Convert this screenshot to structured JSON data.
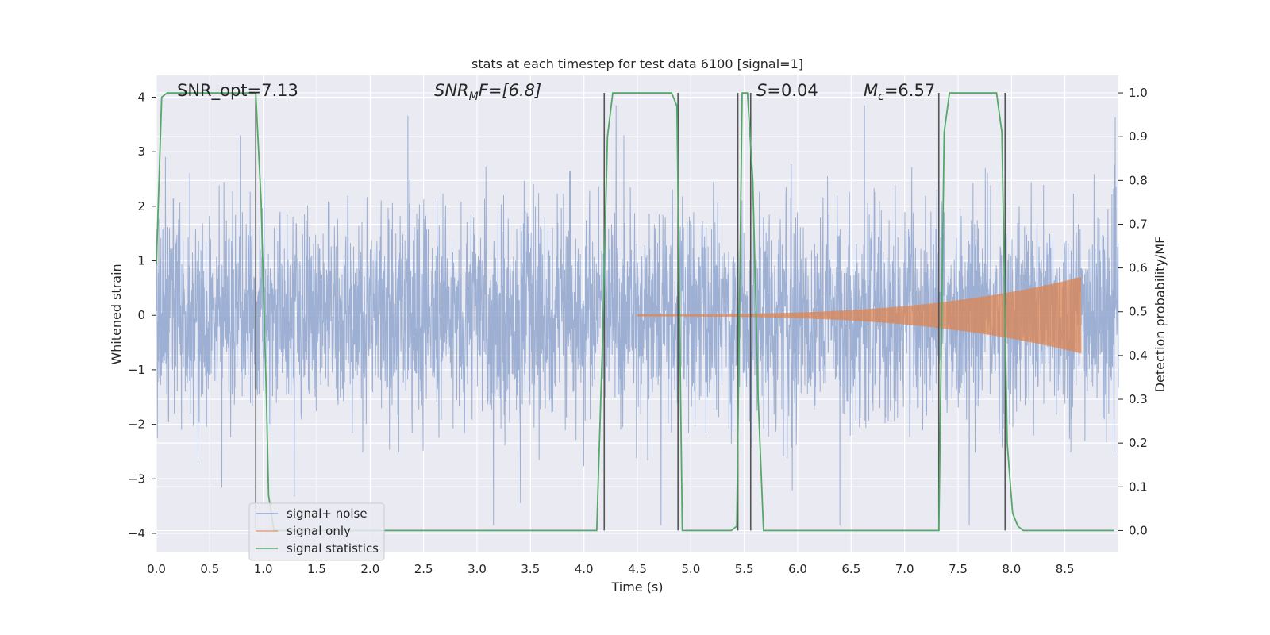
{
  "chart_data": {
    "type": "line",
    "title": "stats at each timestep for test data 6100 [signal=1]",
    "xlabel": "Time (s)",
    "ylabel": "Whitened strain",
    "y2label": "Detection probability/MF",
    "xlim": [
      0.0,
      9.0
    ],
    "ylim": [
      -4.35,
      4.4
    ],
    "y2lim": [
      -0.05,
      1.04
    ],
    "xticks": [
      "0.0",
      "0.5",
      "1.0",
      "1.5",
      "2.0",
      "2.5",
      "3.0",
      "3.5",
      "4.0",
      "4.5",
      "5.0",
      "5.5",
      "6.0",
      "6.5",
      "7.0",
      "7.5",
      "8.0",
      "8.5"
    ],
    "yticks": [
      "4",
      "3",
      "2",
      "1",
      "0",
      "−1",
      "−2",
      "−3",
      "−4"
    ],
    "y2ticks": [
      "1.0",
      "0.9",
      "0.8",
      "0.7",
      "0.6",
      "0.5",
      "0.4",
      "0.3",
      "0.2",
      "0.1",
      "0.0"
    ],
    "grid": true,
    "legend_position": "lower-left",
    "annotations": {
      "snr_opt": "SNR_opt=7.13",
      "snr_mf_main": "SNR",
      "snr_mf_sub": "M",
      "snr_mf_rest": "F=[6.8]",
      "s_main": "S",
      "s_rest": "=0.04",
      "mc_main": "M",
      "mc_sub": "c",
      "mc_rest": "=6.57"
    },
    "series": [
      {
        "name": "signal+ noise",
        "color": "#8fa6cf",
        "description": "noisy whitened strain, roughly Gaussian, amplitude mostly within ±2.5 with spikes to ±3.8"
      },
      {
        "name": "signal only",
        "color": "#dd8452",
        "chirp": {
          "start": 4.5,
          "end": 8.65,
          "amp_start": 0.02,
          "amp_end": 0.7
        }
      },
      {
        "name": "signal statistics",
        "color": "#55a868",
        "axis": "right",
        "x": [
          0.0,
          0.05,
          0.1,
          0.15,
          0.93,
          0.98,
          1.03,
          1.05,
          1.1,
          4.12,
          4.17,
          4.22,
          4.27,
          4.82,
          4.87,
          4.92,
          4.97,
          5.38,
          5.43,
          5.48,
          5.53,
          5.58,
          5.63,
          5.68,
          7.32,
          7.37,
          7.42,
          7.86,
          7.91,
          7.96,
          8.01,
          8.06,
          8.11,
          8.16,
          8.21,
          8.26,
          8.96
        ],
        "y": [
          0.61,
          0.99,
          1.0,
          1.0,
          1.0,
          0.75,
          0.3,
          0.08,
          0.0,
          0.0,
          0.4,
          0.9,
          1.0,
          1.0,
          0.97,
          0.0,
          0.0,
          0.0,
          0.01,
          1.0,
          1.0,
          0.8,
          0.3,
          0.0,
          0.0,
          0.91,
          1.0,
          1.0,
          0.91,
          0.2,
          0.04,
          0.01,
          0.0,
          0.0,
          0.0,
          0.0,
          0.0
        ]
      }
    ],
    "vlines": [
      0.93,
      4.19,
      4.88,
      5.44,
      5.56,
      7.32,
      7.94
    ]
  }
}
